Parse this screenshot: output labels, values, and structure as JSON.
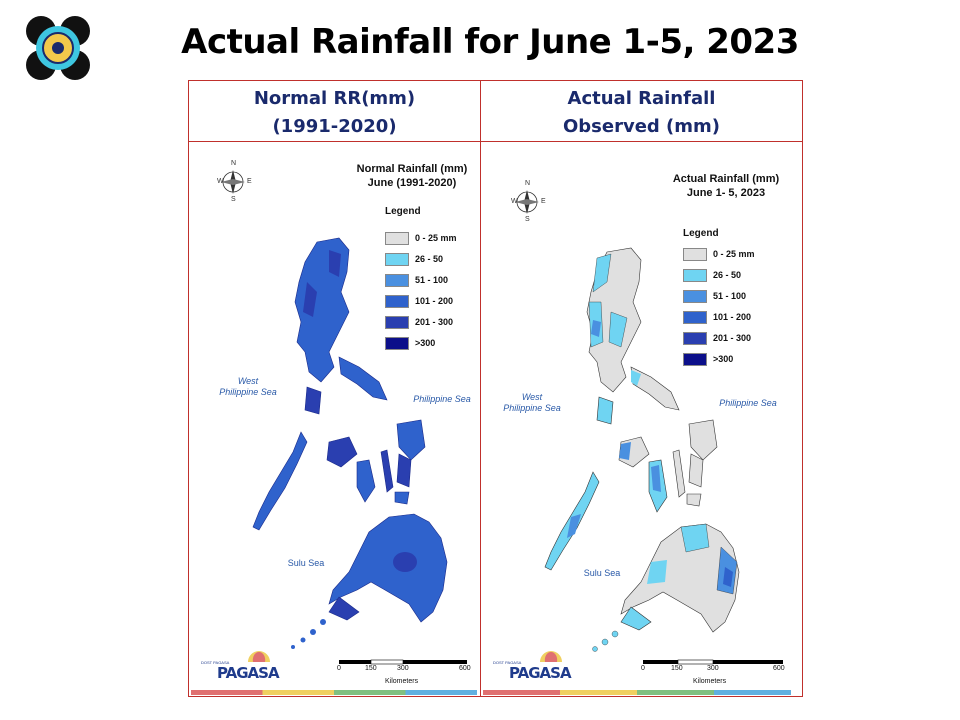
{
  "slide": {
    "title": "Actual Rainfall for June 1-5, 2023"
  },
  "headers": {
    "left": [
      "Normal RR(mm)",
      "(1991-2020)"
    ],
    "right": [
      "Actual Rainfall",
      "Observed  (mm)"
    ]
  },
  "left_map": {
    "title": [
      "Normal Rainfall (mm)",
      "June (1991-2020)"
    ],
    "legend_title": "Legend",
    "legend": [
      {
        "label": "0 - 25 mm",
        "color": "#e0e0e0"
      },
      {
        "label": "26 - 50",
        "color": "#6fd4f2"
      },
      {
        "label": "51 - 100",
        "color": "#4a90e0"
      },
      {
        "label": "101 - 200",
        "color": "#2f62cc"
      },
      {
        "label": "201 - 300",
        "color": "#2a3fb0"
      },
      {
        "label": ">300",
        "color": "#0c0f8a"
      }
    ],
    "seas": {
      "west": [
        "West",
        "Philippine Sea"
      ],
      "east": "Philippine Sea",
      "sulu": "Sulu Sea"
    }
  },
  "right_map": {
    "title": [
      "Actual Rainfall (mm)",
      "June 1- 5, 2023"
    ],
    "legend_title": "Legend",
    "legend": [
      {
        "label": "0 - 25 mm",
        "color": "#e0e0e0"
      },
      {
        "label": "26 - 50",
        "color": "#6fd4f2"
      },
      {
        "label": "51 - 100",
        "color": "#4a90e0"
      },
      {
        "label": "101 - 200",
        "color": "#2f62cc"
      },
      {
        "label": "201 - 300",
        "color": "#2a3fb0"
      },
      {
        "label": ">300",
        "color": "#0c0f8a"
      }
    ],
    "seas": {
      "west": [
        "West",
        "Philippine Sea"
      ],
      "east": "Philippine Sea",
      "sulu": "Sulu Sea"
    }
  },
  "compass": {
    "n": "N",
    "s": "S",
    "e": "E",
    "w": "W"
  },
  "scale": {
    "ticks": [
      "0",
      "150",
      "300",
      "600"
    ],
    "unit": "Kilometers"
  },
  "branding": {
    "name": "PAGASA",
    "tagline": "DOST PAGASA"
  },
  "colorbar_colors": [
    "#e07070",
    "#f0d060",
    "#80c080",
    "#60b0e0"
  ]
}
